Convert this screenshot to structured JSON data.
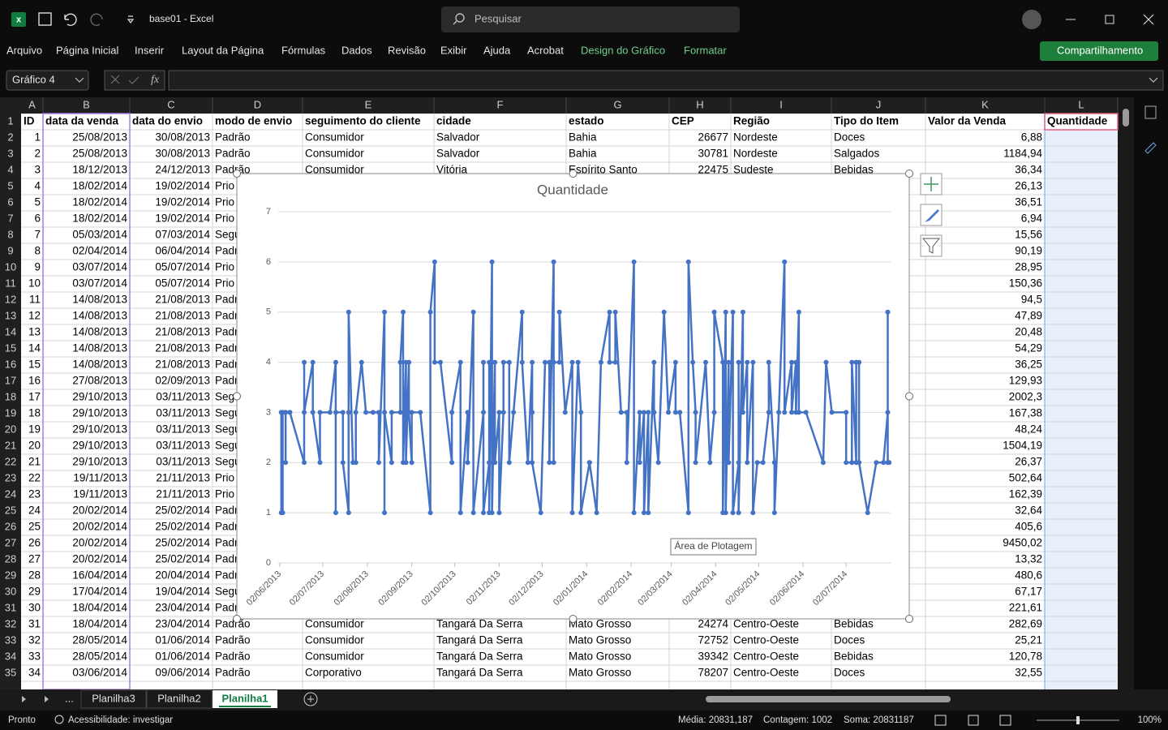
{
  "window": {
    "title": "base01  -  Excel",
    "search": "Pesquisar"
  },
  "ribbon_tabs": [
    "Arquivo",
    "Página Inicial",
    "Inserir",
    "Layout da Página",
    "Fórmulas",
    "Dados",
    "Revisão",
    "Exibir",
    "Ajuda",
    "Acrobat",
    "Design do Gráfico",
    "Formatar"
  ],
  "share_button": "Compartilhamento",
  "formula_bar": {
    "name_box": "Gráfico 4",
    "fx": "fx"
  },
  "sheet": {
    "columns": [
      "A",
      "B",
      "C",
      "D",
      "E",
      "F",
      "G",
      "H",
      "I",
      "J",
      "K",
      "L"
    ],
    "rows": [
      {
        "number": 1,
        "cells": [
          "ID",
          "data da venda",
          "data do envio",
          "modo de envio",
          "seguimento do cliente",
          "cidade",
          "estado",
          "CEP",
          "Região",
          "Tipo do Item",
          "Valor da Venda",
          "Quantidade"
        ]
      },
      {
        "number": 2,
        "cells": [
          1,
          "25/08/2013",
          "30/08/2013",
          "Padrão",
          "Consumidor",
          "Salvador",
          "Bahia",
          26677,
          "Nordeste",
          "Doces",
          "6,88"
        ]
      },
      {
        "number": 3,
        "cells": [
          2,
          "25/08/2013",
          "30/08/2013",
          "Padrão",
          "Consumidor",
          "Salvador",
          "Bahia",
          30781,
          "Nordeste",
          "Salgados",
          "1184,94"
        ]
      },
      {
        "number": 4,
        "cells": [
          3,
          "18/12/2013",
          "24/12/2013",
          "Padrão",
          "Consumidor",
          "Vitória",
          "Espírito Santo",
          22475,
          "Sudeste",
          "Bebidas",
          "36,34"
        ]
      },
      {
        "number": 5,
        "cells": [
          4,
          "18/02/2014",
          "19/02/2014",
          "Prio",
          null,
          null,
          null,
          null,
          null,
          null,
          "26,13"
        ]
      },
      {
        "number": 6,
        "cells": [
          5,
          "18/02/2014",
          "19/02/2014",
          "Prio",
          null,
          null,
          null,
          null,
          null,
          null,
          "36,51"
        ]
      },
      {
        "number": 7,
        "cells": [
          6,
          "18/02/2014",
          "19/02/2014",
          "Prio",
          null,
          null,
          null,
          null,
          null,
          null,
          "6,94"
        ]
      },
      {
        "number": 8,
        "cells": [
          7,
          "05/03/2014",
          "07/03/2014",
          "Segu",
          null,
          null,
          null,
          null,
          null,
          null,
          "15,56"
        ]
      },
      {
        "number": 9,
        "cells": [
          8,
          "02/04/2014",
          "06/04/2014",
          "Padr",
          null,
          null,
          null,
          null,
          null,
          null,
          "90,19"
        ]
      },
      {
        "number": 10,
        "cells": [
          9,
          "03/07/2014",
          "05/07/2014",
          "Prio",
          null,
          null,
          null,
          null,
          null,
          null,
          "28,95"
        ]
      },
      {
        "number": 11,
        "cells": [
          10,
          "03/07/2014",
          "05/07/2014",
          "Prio",
          null,
          null,
          null,
          null,
          null,
          null,
          "150,36"
        ]
      },
      {
        "number": 12,
        "cells": [
          11,
          "14/08/2013",
          "21/08/2013",
          "Padr",
          null,
          null,
          null,
          null,
          null,
          null,
          "94,5"
        ]
      },
      {
        "number": 13,
        "cells": [
          12,
          "14/08/2013",
          "21/08/2013",
          "Padr",
          null,
          null,
          null,
          null,
          null,
          null,
          "47,89"
        ]
      },
      {
        "number": 14,
        "cells": [
          13,
          "14/08/2013",
          "21/08/2013",
          "Padr",
          null,
          null,
          null,
          null,
          null,
          null,
          "20,48"
        ]
      },
      {
        "number": 15,
        "cells": [
          14,
          "14/08/2013",
          "21/08/2013",
          "Padr",
          null,
          null,
          null,
          null,
          null,
          null,
          "54,29"
        ]
      },
      {
        "number": 16,
        "cells": [
          15,
          "14/08/2013",
          "21/08/2013",
          "Padr",
          null,
          null,
          null,
          null,
          null,
          null,
          "36,25"
        ]
      },
      {
        "number": 17,
        "cells": [
          16,
          "27/08/2013",
          "02/09/2013",
          "Padr",
          null,
          null,
          null,
          null,
          null,
          null,
          "129,93"
        ]
      },
      {
        "number": 18,
        "cells": [
          17,
          "29/10/2013",
          "03/11/2013",
          "Segu",
          null,
          null,
          null,
          null,
          null,
          null,
          "2002,3"
        ]
      },
      {
        "number": 19,
        "cells": [
          18,
          "29/10/2013",
          "03/11/2013",
          "Segu",
          null,
          null,
          null,
          null,
          null,
          null,
          "167,38"
        ]
      },
      {
        "number": 20,
        "cells": [
          19,
          "29/10/2013",
          "03/11/2013",
          "Segu",
          null,
          null,
          null,
          null,
          null,
          null,
          "48,24"
        ]
      },
      {
        "number": 21,
        "cells": [
          20,
          "29/10/2013",
          "03/11/2013",
          "Segu",
          null,
          null,
          null,
          null,
          null,
          null,
          "1504,19"
        ]
      },
      {
        "number": 22,
        "cells": [
          21,
          "29/10/2013",
          "03/11/2013",
          "Segu",
          null,
          null,
          null,
          null,
          null,
          null,
          "26,37"
        ]
      },
      {
        "number": 23,
        "cells": [
          22,
          "19/11/2013",
          "21/11/2013",
          "Prio",
          null,
          null,
          null,
          null,
          null,
          null,
          "502,64"
        ]
      },
      {
        "number": 24,
        "cells": [
          23,
          "19/11/2013",
          "21/11/2013",
          "Prio",
          null,
          null,
          null,
          null,
          null,
          null,
          "162,39"
        ]
      },
      {
        "number": 25,
        "cells": [
          24,
          "20/02/2014",
          "25/02/2014",
          "Padr",
          null,
          null,
          null,
          null,
          null,
          null,
          "32,64"
        ]
      },
      {
        "number": 26,
        "cells": [
          25,
          "20/02/2014",
          "25/02/2014",
          "Padr",
          null,
          null,
          null,
          null,
          null,
          null,
          "405,6"
        ]
      },
      {
        "number": 27,
        "cells": [
          26,
          "20/02/2014",
          "25/02/2014",
          "Padr",
          null,
          null,
          null,
          null,
          null,
          null,
          "9450,02"
        ]
      },
      {
        "number": 28,
        "cells": [
          27,
          "20/02/2014",
          "25/02/2014",
          "Padr",
          null,
          null,
          null,
          null,
          null,
          null,
          "13,32"
        ]
      },
      {
        "number": 29,
        "cells": [
          28,
          "16/04/2014",
          "20/04/2014",
          "Padr",
          null,
          null,
          null,
          null,
          null,
          null,
          "480,6"
        ]
      },
      {
        "number": 30,
        "cells": [
          29,
          "17/04/2014",
          "19/04/2014",
          "Segu",
          null,
          null,
          null,
          null,
          null,
          null,
          "67,17"
        ]
      },
      {
        "number": 31,
        "cells": [
          30,
          "18/04/2014",
          "23/04/2014",
          "Padr",
          null,
          null,
          null,
          null,
          null,
          null,
          "221,61"
        ]
      },
      {
        "number": 32,
        "cells": [
          31,
          "18/04/2014",
          "23/04/2014",
          "Padrão",
          "Consumidor",
          "Tangará Da Serra",
          "Mato Grosso",
          24274,
          "Centro-Oeste",
          "Bebidas",
          "282,69"
        ]
      },
      {
        "number": 33,
        "cells": [
          32,
          "28/05/2014",
          "01/06/2014",
          "Padrão",
          "Consumidor",
          "Tangará Da Serra",
          "Mato Grosso",
          72752,
          "Centro-Oeste",
          "Doces",
          "25,21"
        ]
      },
      {
        "number": 34,
        "cells": [
          33,
          "28/05/2014",
          "01/06/2014",
          "Padrão",
          "Consumidor",
          "Tangará Da Serra",
          "Mato Grosso",
          39342,
          "Centro-Oeste",
          "Bebidas",
          "120,78"
        ]
      },
      {
        "number": 35,
        "cells": [
          34,
          "03/06/2014",
          "09/06/2014",
          "Padrão",
          "Corporativo",
          "Tangará Da Serra",
          "Mato Grosso",
          78207,
          "Centro-Oeste",
          "Doces",
          "32,55"
        ]
      }
    ]
  },
  "chart_data": {
    "type": "line",
    "title": "Quantidade",
    "color": "#4472c4",
    "grid": true,
    "ylim": [
      0,
      7
    ],
    "yticks": [
      0,
      1,
      2,
      3,
      4,
      5,
      6,
      7
    ],
    "xlim": [
      "02/06/2013",
      "02/08/2014"
    ],
    "xticks": [
      "02/06/2013",
      "02/07/2013",
      "02/08/2013",
      "02/09/2013",
      "02/10/2013",
      "02/11/2013",
      "02/12/2013",
      "02/01/2014",
      "02/02/2014",
      "02/03/2014",
      "02/04/2014",
      "02/05/2014",
      "02/06/2014",
      "02/07/2014"
    ],
    "tooltip": "Área de Plotagem",
    "x": [
      "03/06/2013",
      "03/06/2013",
      "04/06/2013",
      "04/06/2013",
      "06/06/2013",
      "06/06/2013",
      "06/06/2013",
      "09/06/2013",
      "09/06/2013",
      "19/06/2013",
      "19/06/2013",
      "19/06/2013",
      "25/06/2013",
      "25/06/2013",
      "30/06/2013",
      "30/06/2013",
      "07/07/2013",
      "11/07/2013",
      "11/07/2013",
      "11/07/2013",
      "16/07/2013",
      "16/07/2013",
      "20/07/2013",
      "20/07/2013",
      "20/07/2013",
      "23/07/2013",
      "25/07/2013",
      "25/07/2013",
      "29/07/2013",
      "01/08/2013",
      "06/08/2013",
      "10/08/2013",
      "10/08/2013",
      "14/08/2013",
      "14/08/2013",
      "14/08/2013",
      "19/08/2013",
      "19/08/2013",
      "25/08/2013",
      "25/08/2013",
      "27/08/2013",
      "27/08/2013",
      "29/08/2013",
      "29/08/2013",
      "31/08/2013",
      "31/08/2013",
      "02/09/2013",
      "02/09/2013",
      "08/09/2013",
      "15/09/2013",
      "15/09/2013",
      "18/09/2013",
      "18/09/2013",
      "22/09/2013",
      "30/09/2013",
      "30/09/2013",
      "06/10/2013",
      "06/10/2013",
      "11/10/2013",
      "11/10/2013",
      "15/10/2013",
      "15/10/2013",
      "22/10/2013",
      "22/10/2013",
      "22/10/2013",
      "26/10/2013",
      "26/10/2013",
      "26/10/2013",
      "28/10/2013",
      "28/10/2013",
      "30/10/2013",
      "30/10/2013",
      "02/11/2013",
      "02/11/2013",
      "05/11/2013",
      "05/11/2013",
      "09/11/2013",
      "09/11/2013",
      "12/11/2013",
      "18/11/2013",
      "18/11/2013",
      "22/11/2013",
      "25/11/2013",
      "25/11/2013",
      "25/11/2013",
      "01/12/2013",
      "04/12/2013",
      "07/12/2013",
      "07/12/2013",
      "10/12/2013",
      "10/12/2013",
      "10/12/2013",
      "14/12/2013",
      "14/12/2013",
      "18/12/2013",
      "23/12/2013",
      "23/12/2013",
      "27/12/2013",
      "29/12/2013",
      "29/12/2013",
      "04/01/2014",
      "04/01/2014",
      "09/01/2014",
      "12/01/2014",
      "18/01/2014",
      "18/01/2014",
      "22/01/2014",
      "22/01/2014",
      "26/01/2014",
      "30/01/2014",
      "30/01/2014",
      "04/02/2014",
      "04/02/2014",
      "08/02/2014",
      "08/02/2014",
      "11/02/2014",
      "11/02/2014",
      "14/02/2014",
      "14/02/2014",
      "18/02/2014",
      "18/02/2014",
      "21/02/2014",
      "25/02/2014",
      "28/02/2014",
      "05/03/2014",
      "05/03/2014",
      "08/03/2014",
      "14/03/2014",
      "14/03/2014",
      "17/03/2014",
      "19/03/2014",
      "19/03/2014",
      "26/03/2014",
      "29/03/2014",
      "01/04/2014",
      "01/04/2014",
      "07/04/2014",
      "07/04/2014",
      "09/04/2014",
      "09/04/2014",
      "11/04/2014",
      "11/04/2014",
      "14/04/2014",
      "14/04/2014",
      "18/04/2014",
      "18/04/2014",
      "18/04/2014",
      "21/04/2014",
      "21/04/2014",
      "24/04/2014",
      "24/04/2014",
      "28/04/2014",
      "28/04/2014",
      "01/05/2014",
      "05/05/2014",
      "09/05/2014",
      "09/05/2014",
      "13/05/2014",
      "13/05/2014",
      "16/05/2014",
      "20/05/2014",
      "20/05/2014",
      "25/05/2014",
      "25/05/2014",
      "28/05/2014",
      "28/05/2014",
      "30/05/2014",
      "30/05/2014",
      "04/06/2014",
      "16/06/2014",
      "18/06/2014",
      "22/06/2014",
      "02/07/2014",
      "02/07/2014",
      "06/07/2014",
      "06/07/2014",
      "09/07/2014",
      "09/07/2014",
      "11/07/2014",
      "11/07/2014",
      "17/07/2014",
      "23/07/2014",
      "28/07/2014",
      "31/07/2014",
      "31/07/2014",
      "31/07/2014",
      "01/08/2014"
    ],
    "values": [
      1,
      3,
      1,
      3,
      3,
      2,
      3,
      3,
      3,
      2,
      4,
      3,
      4,
      3,
      2,
      3,
      3,
      4,
      1,
      3,
      3,
      2,
      1,
      3,
      5,
      2,
      2,
      3,
      4,
      3,
      3,
      3,
      2,
      5,
      1,
      3,
      2,
      3,
      3,
      4,
      5,
      2,
      4,
      2,
      4,
      3,
      2,
      3,
      3,
      1,
      5,
      6,
      4,
      4,
      2,
      3,
      4,
      1,
      3,
      2,
      5,
      1,
      3,
      4,
      1,
      2,
      4,
      1,
      6,
      1,
      4,
      2,
      3,
      1,
      3,
      4,
      4,
      2,
      3,
      5,
      4,
      2,
      4,
      3,
      2,
      1,
      4,
      4,
      2,
      6,
      2,
      4,
      4,
      5,
      3,
      4,
      1,
      4,
      3,
      1,
      2,
      2,
      1,
      4,
      5,
      4,
      4,
      5,
      3,
      3,
      2,
      6,
      1,
      3,
      2,
      3,
      1,
      3,
      1,
      4,
      3,
      2,
      5,
      3,
      4,
      3,
      3,
      1,
      6,
      4,
      3,
      2,
      4,
      2,
      3,
      5,
      4,
      1,
      5,
      1,
      4,
      2,
      5,
      1,
      2,
      4,
      1,
      5,
      3,
      4,
      2,
      4,
      1,
      2,
      2,
      3,
      4,
      2,
      1,
      3,
      6,
      3,
      4,
      3,
      4,
      3,
      5,
      3,
      3,
      2,
      4,
      3,
      3,
      2,
      2,
      4,
      2,
      4,
      4,
      2,
      1,
      2,
      2,
      3,
      5,
      2,
      2
    ]
  },
  "sheet_tabs": [
    "...",
    "Planilha3",
    "Planilha2",
    "Planilha1"
  ],
  "status_bar": {
    "mode": "Pronto",
    "accessibility": "Acessibilidade: investigar",
    "average": "Média: 20831,187",
    "count": "Contagem: 1002",
    "sum": "Soma: 20831187",
    "zoom": "100%"
  }
}
